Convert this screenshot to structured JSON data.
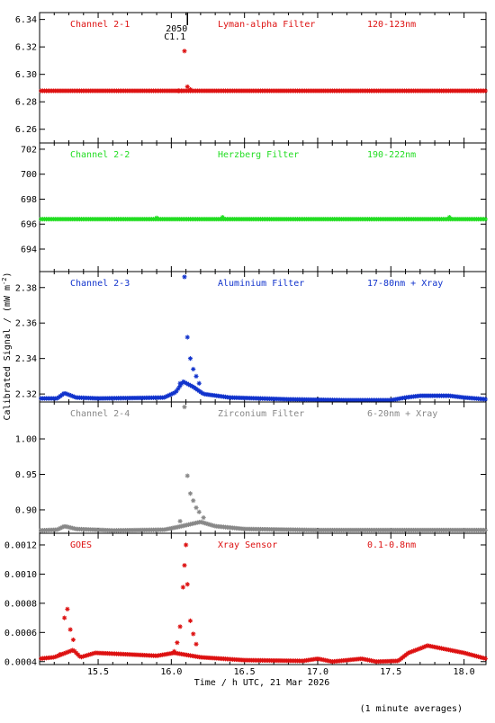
{
  "chart_data": [
    {
      "type": "scatter",
      "panel_label": "Channel 2-1",
      "filter": "Lyman-alpha Filter",
      "band": "120-123nm",
      "color": "#dd1111",
      "ylim": [
        6.25,
        6.345
      ],
      "ticks": [
        6.26,
        6.28,
        6.3,
        6.32,
        6.34
      ],
      "tick_labels": [
        "6.26",
        "6.28",
        "6.30",
        "6.32",
        "6.34"
      ],
      "flare_marker": {
        "x": 16.11,
        "labels": [
          "2050",
          "C1.1"
        ]
      },
      "baseline": [
        {
          "x": 15.1,
          "y": 6.288
        },
        {
          "x": 18.15,
          "y": 6.288
        }
      ],
      "points": [
        {
          "x": 16.05,
          "y": 6.288
        },
        {
          "x": 16.07,
          "y": 6.288
        },
        {
          "x": 16.09,
          "y": 6.317
        },
        {
          "x": 16.11,
          "y": 6.291
        },
        {
          "x": 16.13,
          "y": 6.289
        }
      ]
    },
    {
      "type": "scatter",
      "panel_label": "Channel 2-2",
      "filter": "Herzberg Filter",
      "band": "190-222nm",
      "color": "#22dd22",
      "ylim": [
        692.2,
        702.5
      ],
      "ticks": [
        694,
        696,
        698,
        700,
        702
      ],
      "tick_labels": [
        "694",
        "696",
        "698",
        "700",
        "702"
      ],
      "baseline": [
        {
          "x": 15.1,
          "y": 696.4
        },
        {
          "x": 18.15,
          "y": 696.4
        }
      ],
      "points": [
        {
          "x": 15.9,
          "y": 696.5
        },
        {
          "x": 16.35,
          "y": 696.55
        },
        {
          "x": 17.9,
          "y": 696.55
        }
      ]
    },
    {
      "type": "scatter",
      "panel_label": "Channel 2-3",
      "filter": "Aluminium Filter",
      "band": "17-80nm + Xray",
      "color": "#1133cc",
      "ylim": [
        2.3155,
        2.389
      ],
      "ticks": [
        2.32,
        2.34,
        2.36,
        2.38
      ],
      "tick_labels": [
        "2.32",
        "2.34",
        "2.36",
        "2.38"
      ],
      "baseline": [
        {
          "x": 15.1,
          "y": 2.3175
        },
        {
          "x": 15.22,
          "y": 2.3175
        },
        {
          "x": 15.27,
          "y": 2.3205
        },
        {
          "x": 15.35,
          "y": 2.318
        },
        {
          "x": 15.5,
          "y": 2.3175
        },
        {
          "x": 15.8,
          "y": 2.3178
        },
        {
          "x": 15.95,
          "y": 2.318
        },
        {
          "x": 16.03,
          "y": 2.321
        },
        {
          "x": 16.08,
          "y": 2.327
        },
        {
          "x": 16.15,
          "y": 2.324
        },
        {
          "x": 16.22,
          "y": 2.32
        },
        {
          "x": 16.4,
          "y": 2.318
        },
        {
          "x": 16.8,
          "y": 2.317
        },
        {
          "x": 17.2,
          "y": 2.3165
        },
        {
          "x": 17.5,
          "y": 2.3165
        },
        {
          "x": 17.6,
          "y": 2.318
        },
        {
          "x": 17.7,
          "y": 2.319
        },
        {
          "x": 17.9,
          "y": 2.319
        },
        {
          "x": 18.0,
          "y": 2.318
        },
        {
          "x": 18.15,
          "y": 2.317
        }
      ],
      "points": [
        {
          "x": 16.06,
          "y": 2.326
        },
        {
          "x": 16.09,
          "y": 2.386
        },
        {
          "x": 16.11,
          "y": 2.352
        },
        {
          "x": 16.13,
          "y": 2.34
        },
        {
          "x": 16.15,
          "y": 2.334
        },
        {
          "x": 16.17,
          "y": 2.33
        },
        {
          "x": 16.19,
          "y": 2.326
        }
      ]
    },
    {
      "type": "scatter",
      "panel_label": "Channel 2-4",
      "filter": "Zirconium Filter",
      "band": "6-20nm + Xray",
      "color": "#888888",
      "ylim": [
        0.867,
        1.052
      ],
      "ticks": [
        0.9,
        0.95,
        1.0
      ],
      "tick_labels": [
        "0.90",
        "0.95",
        "1.00"
      ],
      "baseline": [
        {
          "x": 15.1,
          "y": 0.871
        },
        {
          "x": 15.22,
          "y": 0.872
        },
        {
          "x": 15.27,
          "y": 0.877
        },
        {
          "x": 15.35,
          "y": 0.873
        },
        {
          "x": 15.6,
          "y": 0.871
        },
        {
          "x": 15.95,
          "y": 0.872
        },
        {
          "x": 16.05,
          "y": 0.876
        },
        {
          "x": 16.2,
          "y": 0.883
        },
        {
          "x": 16.3,
          "y": 0.877
        },
        {
          "x": 16.5,
          "y": 0.873
        },
        {
          "x": 17.0,
          "y": 0.8715
        },
        {
          "x": 17.6,
          "y": 0.8715
        },
        {
          "x": 18.15,
          "y": 0.8715
        }
      ],
      "points": [
        {
          "x": 16.06,
          "y": 0.884
        },
        {
          "x": 16.09,
          "y": 1.045
        },
        {
          "x": 16.11,
          "y": 0.948
        },
        {
          "x": 16.13,
          "y": 0.923
        },
        {
          "x": 16.15,
          "y": 0.913
        },
        {
          "x": 16.17,
          "y": 0.903
        },
        {
          "x": 16.19,
          "y": 0.897
        },
        {
          "x": 16.22,
          "y": 0.889
        }
      ]
    },
    {
      "type": "scatter",
      "panel_label": "GOES",
      "filter": "Xray Sensor",
      "band": "0.1-0.8nm",
      "color": "#dd1111",
      "ylim": [
        0.00038,
        0.00128
      ],
      "ticks": [
        0.0004,
        0.0006,
        0.0008,
        0.001,
        0.0012
      ],
      "tick_labels": [
        "0.0004",
        "0.0006",
        "0.0008",
        "0.0010",
        "0.0012"
      ],
      "xlim": [
        15.1,
        18.15
      ],
      "xticks": [
        15.5,
        16.0,
        16.5,
        17.0,
        17.5,
        18.0
      ],
      "xtick_labels": [
        "15.5",
        "16.0",
        "16.5",
        "17.0",
        "17.5",
        "18.0"
      ],
      "xlabel": "Time / h UTC, 21 Mar 2026",
      "baseline": [
        {
          "x": 15.1,
          "y": 0.00042
        },
        {
          "x": 15.2,
          "y": 0.00043
        },
        {
          "x": 15.33,
          "y": 0.00048
        },
        {
          "x": 15.38,
          "y": 0.00043
        },
        {
          "x": 15.48,
          "y": 0.00046
        },
        {
          "x": 15.7,
          "y": 0.00045
        },
        {
          "x": 15.9,
          "y": 0.00044
        },
        {
          "x": 16.02,
          "y": 0.00046
        },
        {
          "x": 16.2,
          "y": 0.00043
        },
        {
          "x": 16.5,
          "y": 0.00041
        },
        {
          "x": 16.9,
          "y": 0.000405
        },
        {
          "x": 17.0,
          "y": 0.00042
        },
        {
          "x": 17.1,
          "y": 0.0004
        },
        {
          "x": 17.3,
          "y": 0.00042
        },
        {
          "x": 17.4,
          "y": 0.0004
        },
        {
          "x": 17.55,
          "y": 0.000405
        },
        {
          "x": 17.62,
          "y": 0.00046
        },
        {
          "x": 17.7,
          "y": 0.00049
        },
        {
          "x": 17.75,
          "y": 0.00051
        },
        {
          "x": 17.85,
          "y": 0.00049
        },
        {
          "x": 18.0,
          "y": 0.00046
        },
        {
          "x": 18.15,
          "y": 0.00042
        }
      ],
      "points": [
        {
          "x": 15.24,
          "y": 0.00045
        },
        {
          "x": 15.27,
          "y": 0.0007
        },
        {
          "x": 15.29,
          "y": 0.00076
        },
        {
          "x": 15.31,
          "y": 0.00062
        },
        {
          "x": 15.33,
          "y": 0.00055
        },
        {
          "x": 16.02,
          "y": 0.00047
        },
        {
          "x": 16.04,
          "y": 0.00053
        },
        {
          "x": 16.06,
          "y": 0.00064
        },
        {
          "x": 16.08,
          "y": 0.00091
        },
        {
          "x": 16.09,
          "y": 0.00106
        },
        {
          "x": 16.1,
          "y": 0.0012
        },
        {
          "x": 16.11,
          "y": 0.00093
        },
        {
          "x": 16.13,
          "y": 0.00068
        },
        {
          "x": 16.15,
          "y": 0.00059
        },
        {
          "x": 16.17,
          "y": 0.00052
        }
      ]
    }
  ],
  "ylabel": "Calibrated Signal / (mW m",
  "ylabel_sup": "-2",
  "ylabel_end": ")",
  "footnote": "(1 minute averages)"
}
